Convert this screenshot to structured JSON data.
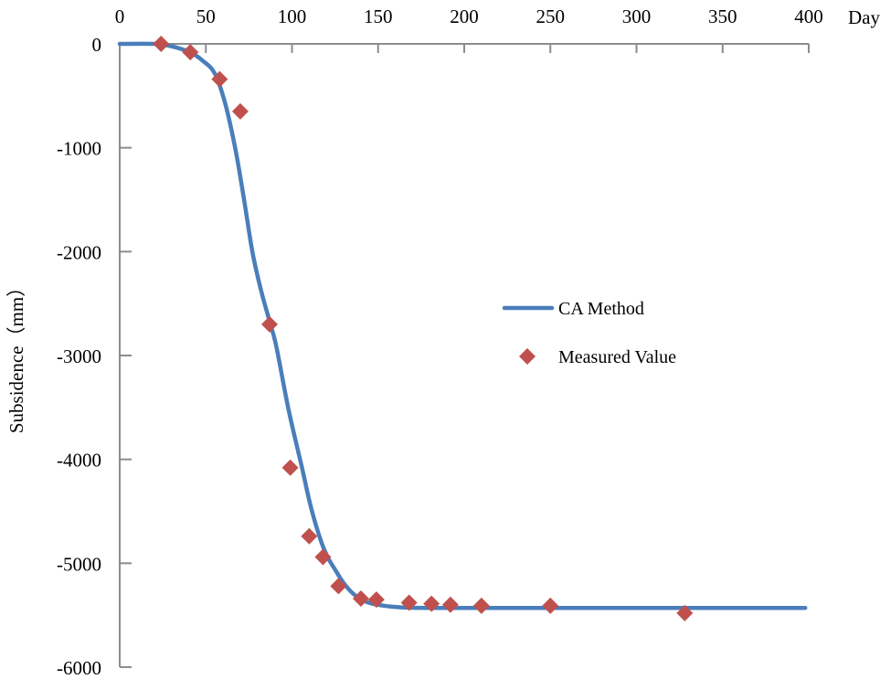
{
  "chart_data": {
    "type": "line",
    "title": "",
    "xlabel": "Day",
    "ylabel": "Subsidence（mm）",
    "xlim": [
      0,
      400
    ],
    "ylim": [
      -6000,
      0
    ],
    "x_ticks": [
      0,
      50,
      100,
      150,
      200,
      250,
      300,
      350,
      400
    ],
    "y_ticks": [
      0,
      -1000,
      -2000,
      -3000,
      -4000,
      -5000,
      -6000
    ],
    "x_axis_position": "top",
    "grid": false,
    "legend_position": "center-right",
    "series": [
      {
        "name": "CA Method",
        "type": "line",
        "color": "#4A7EBB",
        "x": [
          0,
          20,
          26,
          34,
          42,
          48,
          55,
          61,
          67,
          72,
          77,
          82,
          87.5,
          91,
          98,
          105.6,
          111,
          117,
          121,
          125,
          130,
          136,
          143,
          150,
          158,
          169,
          190,
          250,
          300,
          350,
          398
        ],
        "y": [
          0,
          0,
          -10,
          -40,
          -90,
          -160,
          -280,
          -560,
          -1000,
          -1480,
          -2000,
          -2370,
          -2700,
          -2920,
          -3520,
          -4065,
          -4460,
          -4795,
          -4950,
          -5060,
          -5190,
          -5300,
          -5370,
          -5400,
          -5418,
          -5428,
          -5430,
          -5430,
          -5430,
          -5430,
          -5430
        ]
      },
      {
        "name": "Measured Value",
        "type": "scatter",
        "marker": "diamond",
        "color": "#C0504D",
        "x": [
          24,
          41,
          58,
          70,
          87,
          99,
          110,
          118,
          127,
          140,
          149,
          168,
          181,
          192,
          210,
          250,
          328
        ],
        "y": [
          0,
          -80,
          -340,
          -650,
          -2700,
          -4080,
          -4740,
          -4940,
          -5220,
          -5340,
          -5350,
          -5380,
          -5390,
          -5400,
          -5410,
          -5410,
          -5480
        ]
      }
    ]
  },
  "axes": {
    "x_tick_labels": [
      "0",
      "50",
      "100",
      "150",
      "200",
      "250",
      "300",
      "350",
      "400"
    ],
    "y_tick_labels": [
      "0",
      "-1000",
      "-2000",
      "-3000",
      "-4000",
      "-5000",
      "-6000"
    ],
    "x_title": "Day",
    "y_title": "Subsidence（mm）",
    "axis_color": "#8C8C8C"
  },
  "legend": {
    "items": [
      {
        "label": "CA Method",
        "symbol": "line",
        "color": "#4A7EBB"
      },
      {
        "label": "Measured Value",
        "symbol": "diamond",
        "color": "#C0504D"
      }
    ]
  }
}
